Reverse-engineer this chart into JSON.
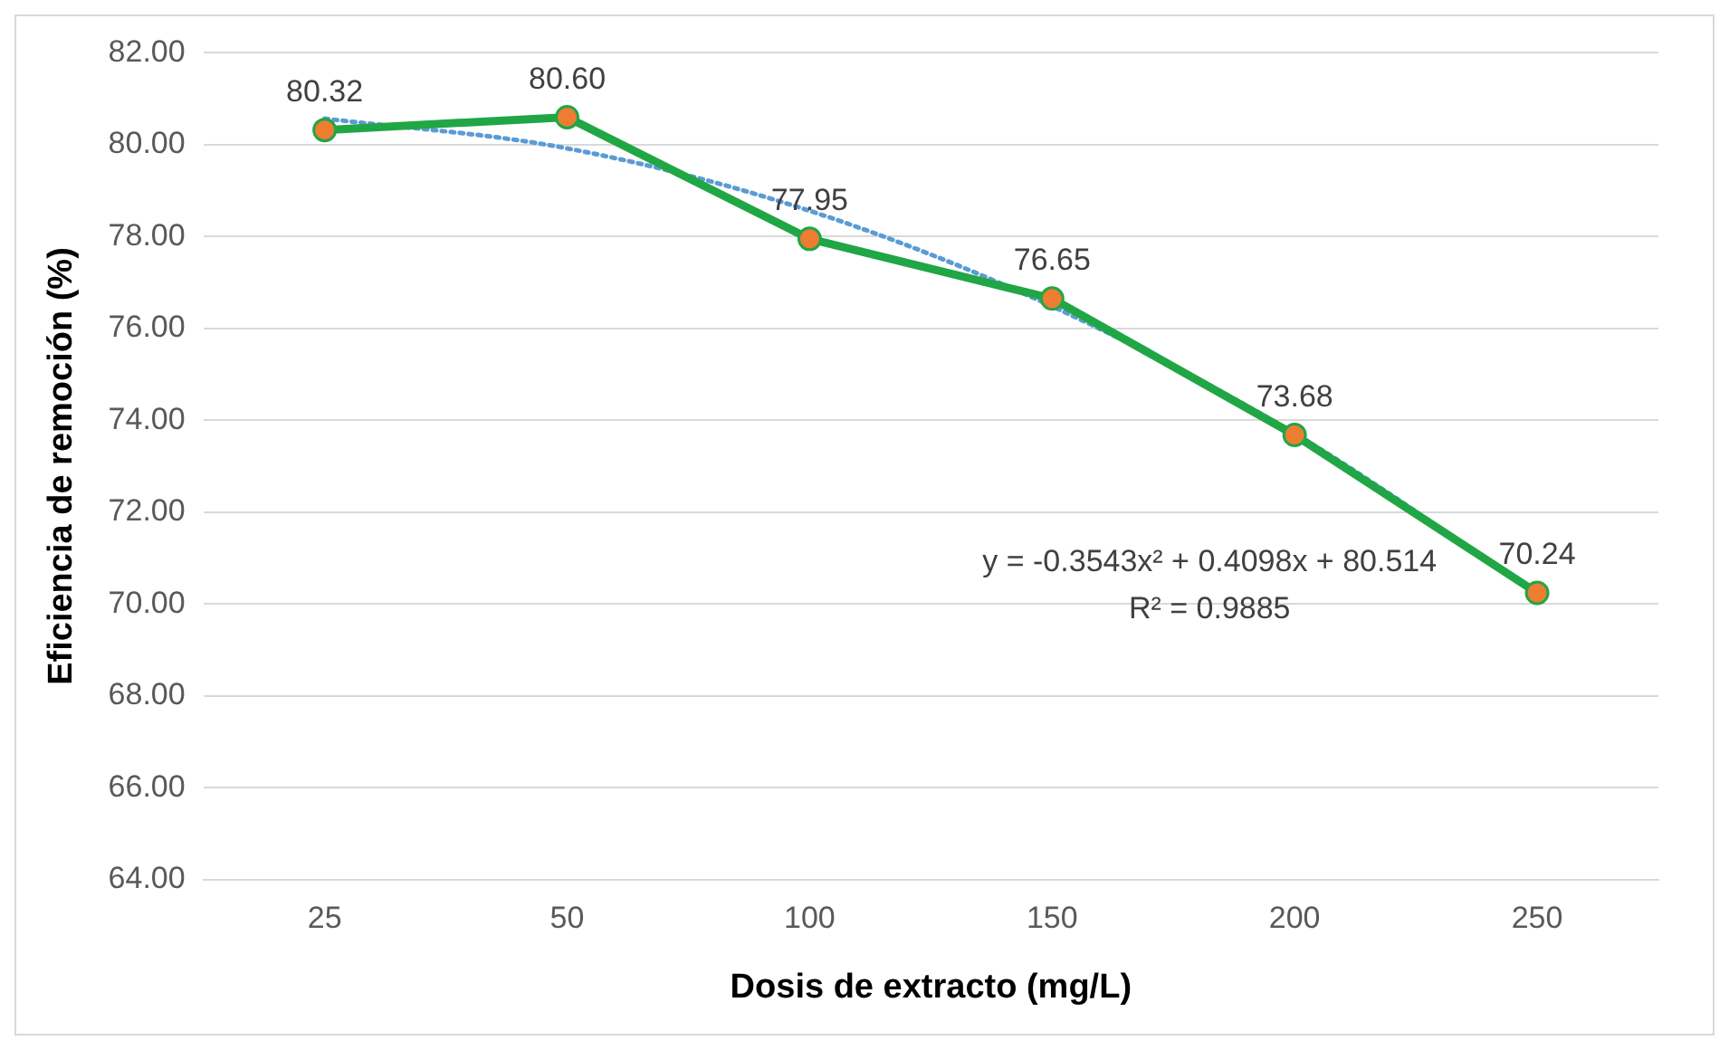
{
  "chart_data": {
    "type": "line",
    "xlabel": "Dosis de extracto (mg/L)",
    "ylabel": "Eficiencia de remoción (%)",
    "categories": [
      "25",
      "50",
      "100",
      "150",
      "200",
      "250"
    ],
    "series": [
      {
        "color": "#21a645",
        "colors": [
          "#ed7d31",
          "#ed7d31",
          "#ed7d31",
          "#ed7d31",
          "#ed7d31",
          "#ed7d31"
        ],
        "marker": "circle",
        "line_style": "solid",
        "values": [
          80.32,
          80.6,
          77.95,
          76.65,
          73.68,
          70.24
        ],
        "value_labels": [
          "80.32",
          "80.60",
          "77.95",
          "76.65",
          "73.68",
          "70.24"
        ]
      },
      {
        "color": "#5b9bd5",
        "marker": "none",
        "line_style": "dotted",
        "values": [
          80.57,
          79.92,
          78.56,
          76.48,
          73.71,
          70.22
        ]
      }
    ],
    "ylim": [
      64,
      82
    ],
    "yticks": [
      {
        "value": 64,
        "label": "64.00"
      },
      {
        "value": 66,
        "label": "66.00"
      },
      {
        "value": 68,
        "label": "68.00"
      },
      {
        "value": 70,
        "label": "70.00"
      },
      {
        "value": 72,
        "label": "72.00"
      },
      {
        "value": 74,
        "label": "74.00"
      },
      {
        "value": 76,
        "label": "76.00"
      },
      {
        "value": 78,
        "label": "78.00"
      },
      {
        "value": 80,
        "label": "80.00"
      },
      {
        "value": 82,
        "label": "82.00"
      }
    ],
    "grid": "y",
    "legend": false,
    "annotations": [
      "y = -0.3543x² + 0.4098x + 80.514",
      "R² = 0.9885"
    ]
  }
}
